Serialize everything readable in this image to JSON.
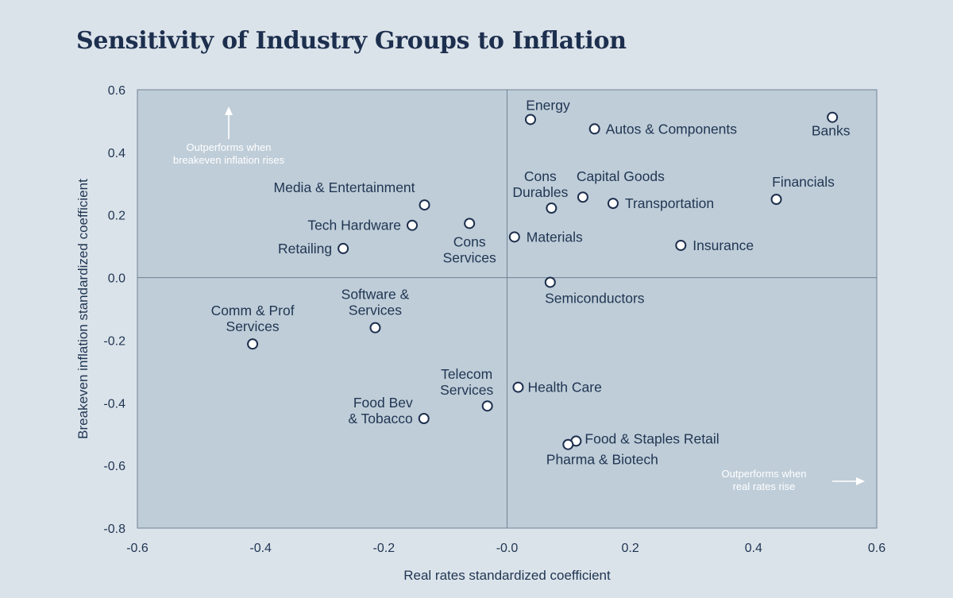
{
  "chart_data": {
    "type": "scatter",
    "title": "Sensitivity of Industry Groups to Inflation",
    "xlabel": "Real rates standardized coefficient",
    "ylabel": "Breakeven inflation standardized coefficient",
    "xlim": [
      -0.6,
      0.6
    ],
    "ylim": [
      -0.8,
      0.6
    ],
    "xticks": [
      "-0.6",
      "-0.4",
      "-0.2",
      "-0.0",
      "0.2",
      "0.4",
      "0.6"
    ],
    "yticks": [
      "0.6",
      "0.4",
      "0.2",
      "0.0",
      "-0.2",
      "-0.4",
      "-0.6",
      "-0.8"
    ],
    "annotations": [
      {
        "lines": [
          "Outperforms when",
          "breakeven inflation rises"
        ],
        "arrow": "up"
      },
      {
        "lines": [
          "Outperforms when",
          "real rates rise"
        ],
        "arrow": "right"
      }
    ],
    "points": [
      {
        "label": [
          "Energy"
        ],
        "x": 0.038,
        "y": 0.505
      },
      {
        "label": [
          "Autos & Components"
        ],
        "x": 0.142,
        "y": 0.475
      },
      {
        "label": [
          "Banks"
        ],
        "x": 0.528,
        "y": 0.512
      },
      {
        "label": [
          "Capital Goods"
        ],
        "x": 0.123,
        "y": 0.257
      },
      {
        "label": [
          "Cons",
          "Durables"
        ],
        "x": 0.072,
        "y": 0.222
      },
      {
        "label": [
          "Transportation"
        ],
        "x": 0.172,
        "y": 0.237
      },
      {
        "label": [
          "Financials"
        ],
        "x": 0.437,
        "y": 0.25
      },
      {
        "label": [
          "Materials"
        ],
        "x": 0.012,
        "y": 0.13
      },
      {
        "label": [
          "Insurance"
        ],
        "x": 0.282,
        "y": 0.103
      },
      {
        "label": [
          "Media & Entertainment"
        ],
        "x": -0.134,
        "y": 0.232
      },
      {
        "label": [
          "Tech Hardware"
        ],
        "x": -0.154,
        "y": 0.167
      },
      {
        "label": [
          "Cons",
          "Services"
        ],
        "x": -0.061,
        "y": 0.173
      },
      {
        "label": [
          "Retailing"
        ],
        "x": -0.266,
        "y": 0.093
      },
      {
        "label": [
          "Semiconductors"
        ],
        "x": 0.07,
        "y": -0.015
      },
      {
        "label": [
          "Software &",
          "Services"
        ],
        "x": -0.214,
        "y": -0.16
      },
      {
        "label": [
          "Comm & Prof",
          "Services"
        ],
        "x": -0.413,
        "y": -0.212
      },
      {
        "label": [
          "Health Care"
        ],
        "x": 0.018,
        "y": -0.35
      },
      {
        "label": [
          "Telecom",
          "Services"
        ],
        "x": -0.032,
        "y": -0.41
      },
      {
        "label": [
          "Food Bev",
          "& Tobacco"
        ],
        "x": -0.135,
        "y": -0.45
      },
      {
        "label": [
          "Food & Staples Retail"
        ],
        "x": 0.112,
        "y": -0.522
      },
      {
        "label": [
          "Pharma & Biotech"
        ],
        "x": 0.099,
        "y": -0.533
      }
    ],
    "colors": {
      "background": "#dbe3ea",
      "plot_area": "#bfcdd8",
      "text": "#1f3552",
      "axis_line": "#6f8295",
      "marker_fill": "#ffffff",
      "marker_stroke": "#1d2f4e"
    }
  }
}
